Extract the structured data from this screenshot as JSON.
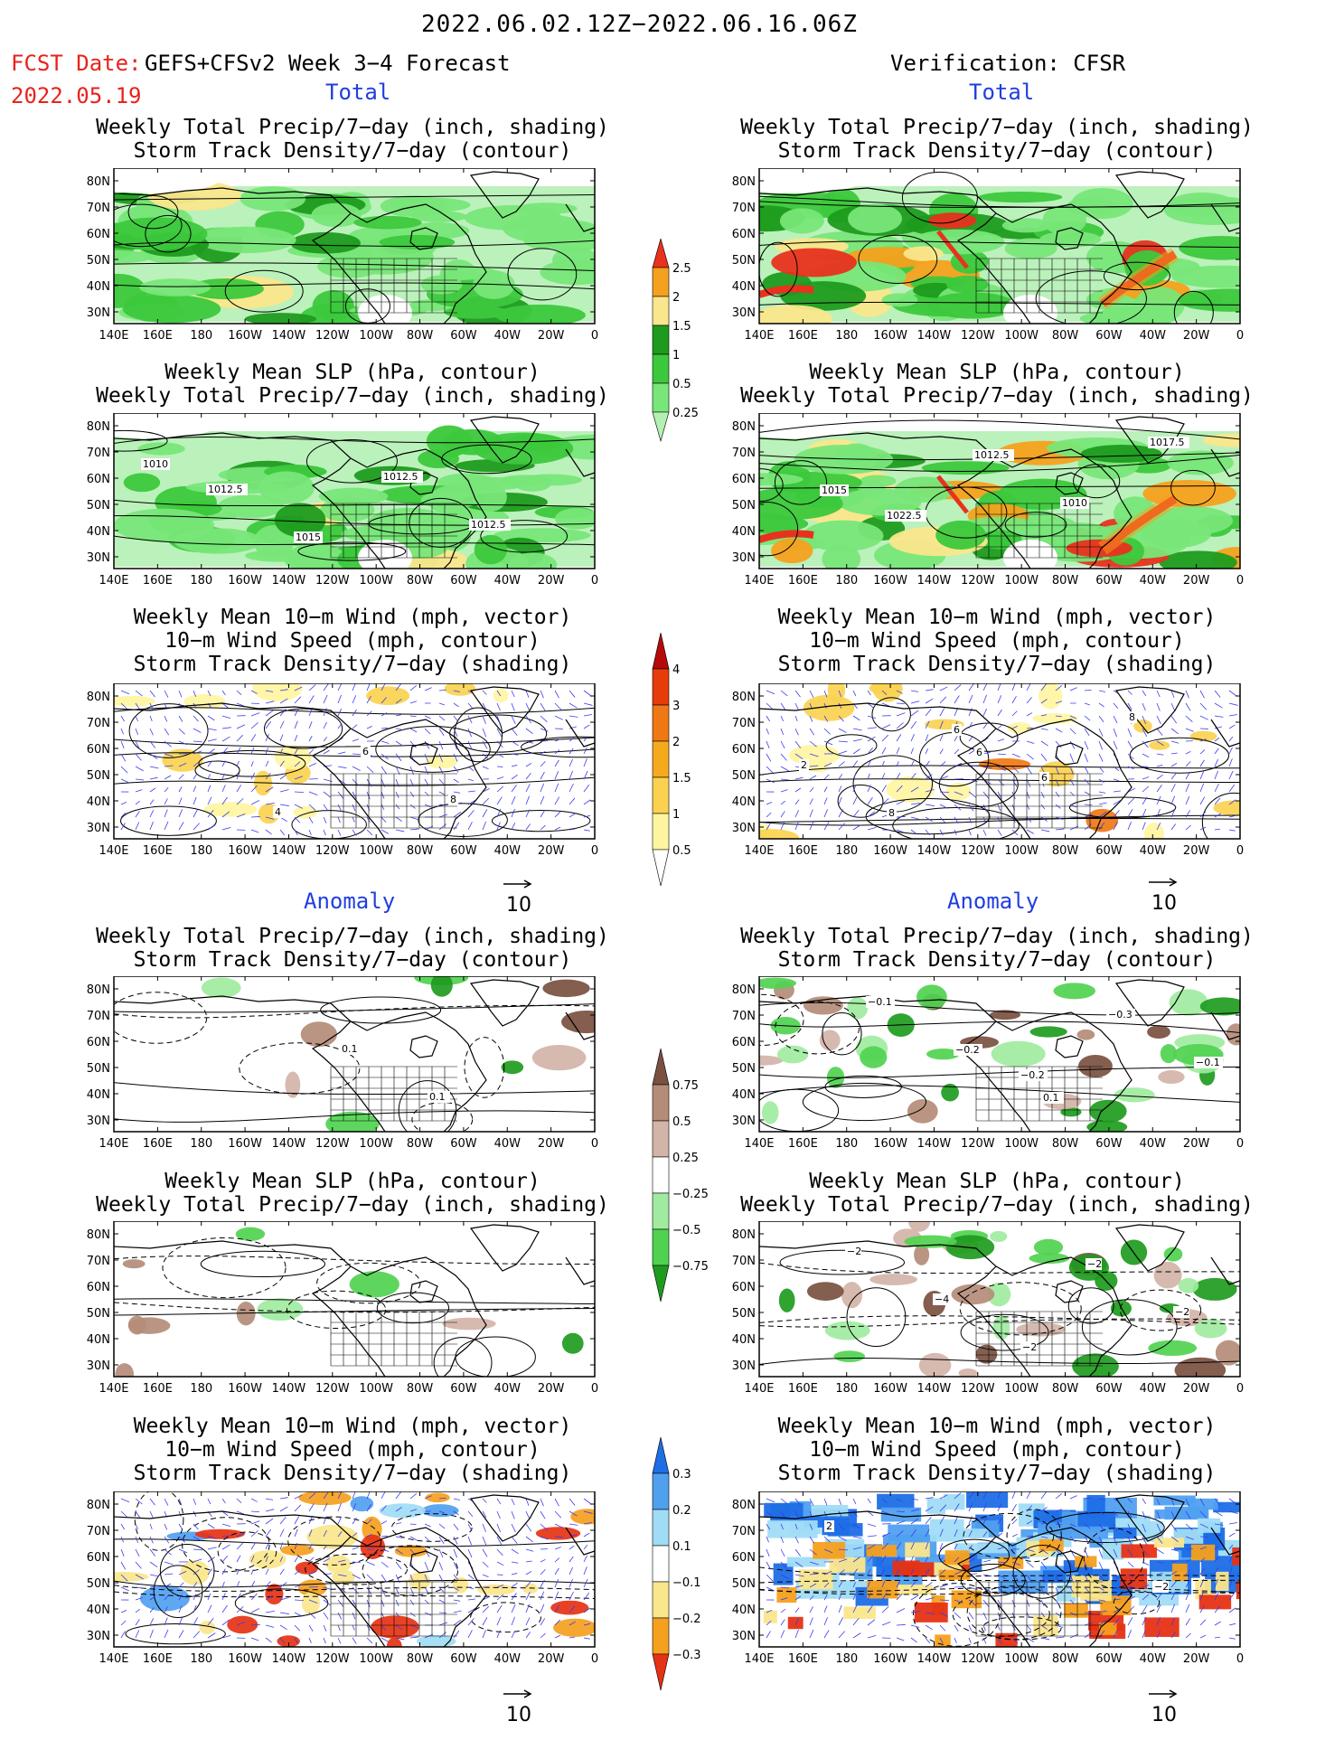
{
  "header": {
    "time_range": "2022.06.02.12Z−2022.06.16.06Z",
    "fcst_prefix": "FCST Date:",
    "fcst_date": "2022.05.19",
    "model": "GEFS+CFSv2 Week 3−4 Forecast",
    "verification": "Verification: CFSR"
  },
  "sections": {
    "total": "Total",
    "anomaly": "Anomaly"
  },
  "titles": {
    "precip_track": [
      "Weekly Total Precip/7−day (inch, shading)",
      "Storm Track Density/7−day (contour)"
    ],
    "slp_precip": [
      "Weekly Mean SLP (hPa, contour)",
      "Weekly Total Precip/7−day (inch, shading)"
    ],
    "wind": [
      "Weekly Mean 10−m Wind (mph, vector)",
      "10−m Wind Speed (mph, contour)",
      "Storm Track Density/7−day (shading)"
    ]
  },
  "axes": {
    "lat_labels": [
      "80N",
      "70N",
      "60N",
      "50N",
      "40N",
      "30N"
    ],
    "lon_labels": [
      "140E",
      "160E",
      "180",
      "160W",
      "140W",
      "120W",
      "100W",
      "80W",
      "60W",
      "40W",
      "20W",
      "0"
    ]
  },
  "vector_ref": "10",
  "colorbars": {
    "precip_total": {
      "labels": [
        "0.25",
        "0.5",
        "1",
        "1.5",
        "2",
        "2.5"
      ],
      "colors": [
        "#b4f0b4",
        "#78e678",
        "#3cc83c",
        "#1e9b1e",
        "#fae68c",
        "#f5a01e",
        "#e8321e"
      ]
    },
    "track_total": {
      "labels": [
        "0.5",
        "1",
        "1.5",
        "2",
        "3",
        "4"
      ],
      "colors": [
        "#ffffff",
        "#fff5a0",
        "#fad250",
        "#f5aa1e",
        "#f07814",
        "#e63c0a",
        "#b40a0a"
      ]
    },
    "precip_anom": {
      "labels": [
        "0.75",
        "0.5",
        "0.25",
        "−0.25",
        "−0.5",
        "−0.75"
      ],
      "colors": [
        "#1e9b1e",
        "#50d250",
        "#a0eba0",
        "#ffffff",
        "#d2b4a8",
        "#b48c78",
        "#7a5040"
      ]
    },
    "track_anom": {
      "labels": [
        "0.3",
        "0.2",
        "0.1",
        "−0.1",
        "−0.2",
        "−0.3"
      ],
      "colors": [
        "#e63214",
        "#f5a01e",
        "#fae68c",
        "#ffffff",
        "#a0dcf5",
        "#50a0f0",
        "#1e6ee6"
      ]
    }
  },
  "contour_labels": {
    "slp_fcst": [
      "1012.5",
      "1015",
      "1012.5",
      "1012.5",
      "1010"
    ],
    "slp_verif": [
      "1022.5",
      "1012.5",
      "1010",
      "1017.5",
      "1015"
    ],
    "wind_fcst": [
      "4",
      "6",
      "8"
    ],
    "wind_verif": [
      "6",
      "6",
      "8",
      "2",
      "8",
      "6"
    ],
    "anom_precip_fcst": [
      "0.1",
      "0.1"
    ],
    "anom_precip_verif": [
      "−0.2",
      "−0.3",
      "−0.1",
      "−0.1",
      "−0.2",
      "0.1"
    ],
    "anom_slp_verif": [
      "−2",
      "−2",
      "−2",
      "−4",
      "−2"
    ],
    "anom_wind_verif": [
      "−2",
      "2"
    ]
  }
}
